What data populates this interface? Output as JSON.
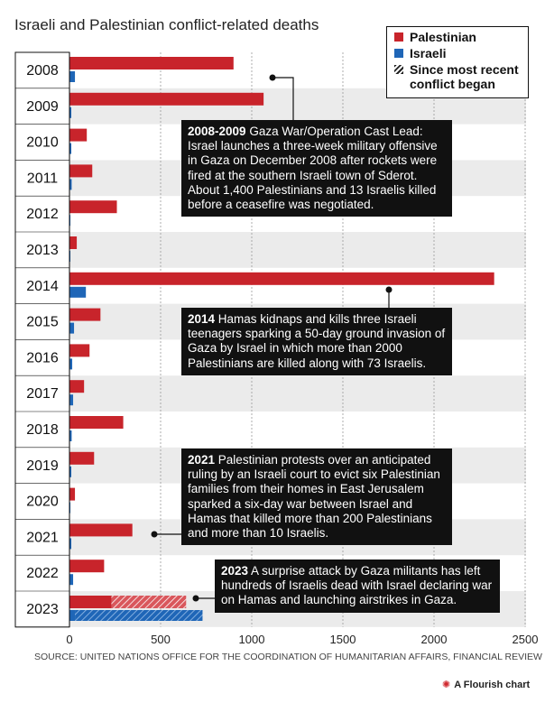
{
  "chart_data": {
    "type": "bar",
    "orientation": "horizontal",
    "title": "Israeli and Palestinian conflict-related deaths",
    "categories": [
      "2008",
      "2009",
      "2010",
      "2011",
      "2012",
      "2013",
      "2014",
      "2015",
      "2016",
      "2017",
      "2018",
      "2019",
      "2020",
      "2021",
      "2022",
      "2023"
    ],
    "series": [
      {
        "name": "Palestinian",
        "color": "#c8242b",
        "values": [
          900,
          1065,
          95,
          125,
          260,
          40,
          2330,
          170,
          110,
          80,
          295,
          135,
          30,
          345,
          190,
          230
        ]
      },
      {
        "name": "Israeli",
        "color": "#1f66b7",
        "values": [
          30,
          10,
          10,
          12,
          5,
          5,
          90,
          25,
          15,
          20,
          12,
          10,
          5,
          10,
          20,
          30
        ]
      }
    ],
    "since_recent_conflict": {
      "name": "Since most recent conflict began",
      "category": "2023",
      "palestinian_additional": 410,
      "israeli_additional": 700
    },
    "xlim": [
      0,
      2500
    ],
    "xticks": [
      0,
      500,
      1000,
      1500,
      2000,
      2500
    ],
    "xtick_labels": [
      "0",
      "500",
      "1000",
      "1500",
      "2000",
      "2500"
    ],
    "grid": true
  },
  "legend": {
    "palestinian": "Palestinian",
    "israeli": "Israeli",
    "since": "Since most recent conflict began"
  },
  "annotations": [
    {
      "category": "2009",
      "bold": "2008-2009",
      "text": " Gaza War/Operation Cast Lead: Israel launches a three-week military offensive in Gaza on December 2008 after rockets were fired at the southern Israeli town of Sderot. About 1,400 Palestinians and 13 Israelis killed before a ceasefire was negotiated."
    },
    {
      "category": "2014",
      "bold": "2014",
      "text": " Hamas kidnaps and kills three Israeli teenagers sparking a 50-day ground invasion of Gaza by Israel in which more than 2000 Palestinians are killed along with 73 Israelis."
    },
    {
      "category": "2021",
      "bold": "2021",
      "text": " Palestinian protests over an anticipated ruling by an Israeli court to evict six Palestinian families from their homes in East Jerusalem sparked a six-day war between Israel and Hamas that killed more than 200 Palestinians and more than 10 Israelis."
    },
    {
      "category": "2023",
      "bold": "2023",
      "text": " A surprise attack by Gaza militants has left hundreds of Israelis dead with Israel declaring war on Hamas and launching airstrikes in Gaza."
    }
  ],
  "source": "SOURCE: UNITED NATIONS OFFICE FOR THE COORDINATION OF HUMANITARIAN AFFAIRS, FINANCIAL REVIEW",
  "credit": "A Flourish chart"
}
